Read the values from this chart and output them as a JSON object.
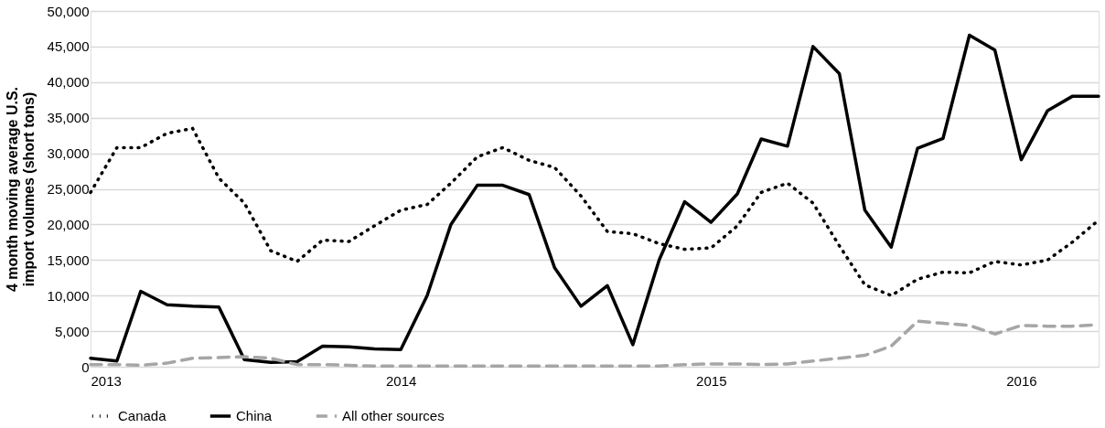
{
  "chart_data": {
    "type": "line",
    "ylabel": "4 month moving average U.S. import volumes (short tons)",
    "x": [
      "2013-01",
      "2013-02",
      "2013-03",
      "2013-04",
      "2013-05",
      "2013-06",
      "2013-07",
      "2013-08",
      "2013-09",
      "2013-10",
      "2013-11",
      "2013-12",
      "2014-01",
      "2014-02",
      "2014-03",
      "2014-04",
      "2014-05",
      "2014-06",
      "2014-07",
      "2014-08",
      "2014-09",
      "2014-10",
      "2014-11",
      "2014-12",
      "2015-01",
      "2015-02",
      "2015-03",
      "2015-04",
      "2015-05",
      "2015-06",
      "2015-07",
      "2015-08",
      "2015-09",
      "2015-10",
      "2015-11",
      "2015-12",
      "2016-01",
      "2016-02",
      "2016-03",
      "2016-04"
    ],
    "series": [
      {
        "name": "Canada",
        "color": "#000000",
        "line_style": "dotted",
        "values": [
          24500,
          30800,
          30800,
          32800,
          33500,
          26500,
          23000,
          16300,
          14800,
          17800,
          17600,
          19800,
          22000,
          22800,
          25800,
          29500,
          30800,
          29000,
          28000,
          24000,
          19000,
          18700,
          17300,
          16500,
          16700,
          19800,
          24500,
          25800,
          23000,
          17000,
          11500,
          10000,
          12300,
          13300,
          13200,
          14800,
          14300,
          15000,
          17500,
          20600
        ]
      },
      {
        "name": "China",
        "color": "#000000",
        "line_style": "solid",
        "values": [
          1200,
          800,
          10600,
          8700,
          8500,
          8400,
          1000,
          600,
          700,
          2900,
          2800,
          2500,
          2400,
          10000,
          20000,
          25500,
          25500,
          24200,
          13900,
          8500,
          11400,
          3100,
          15000,
          23200,
          20300,
          24300,
          32000,
          31000,
          45000,
          41200,
          22000,
          16800,
          30700,
          32100,
          46600,
          44500,
          29100,
          36000,
          38000,
          38000
        ]
      },
      {
        "name": "All other sources",
        "color": "#a6a6a6",
        "line_style": "dashed",
        "values": [
          300,
          300,
          200,
          500,
          1200,
          1300,
          1400,
          1200,
          300,
          300,
          200,
          100,
          100,
          100,
          100,
          100,
          100,
          100,
          100,
          100,
          100,
          100,
          100,
          300,
          400,
          400,
          300,
          400,
          800,
          1200,
          1600,
          2900,
          6400,
          6100,
          5800,
          4600,
          5800,
          5700,
          5700,
          5900
        ]
      }
    ],
    "xlim": [
      "2013-01",
      "2016-04"
    ],
    "xticks": [
      "2013",
      "2014",
      "2015",
      "2016"
    ],
    "ylim": [
      0,
      50000
    ],
    "yticks": [
      0,
      {
        "value": 5000,
        "label": "5,000"
      },
      {
        "value": 10000,
        "label": "10,000"
      },
      {
        "value": 15000,
        "label": "15,000"
      },
      {
        "value": 20000,
        "label": "20,000"
      },
      {
        "value": 25000,
        "label": "25,000"
      },
      {
        "value": 30000,
        "label": "30,000"
      },
      {
        "value": 35000,
        "label": "35,000"
      },
      {
        "value": 40000,
        "label": "40,000"
      },
      {
        "value": 45000,
        "label": "45,000"
      },
      {
        "value": 50000,
        "label": "50,000"
      }
    ],
    "grid": "y",
    "legend": "bottom"
  }
}
